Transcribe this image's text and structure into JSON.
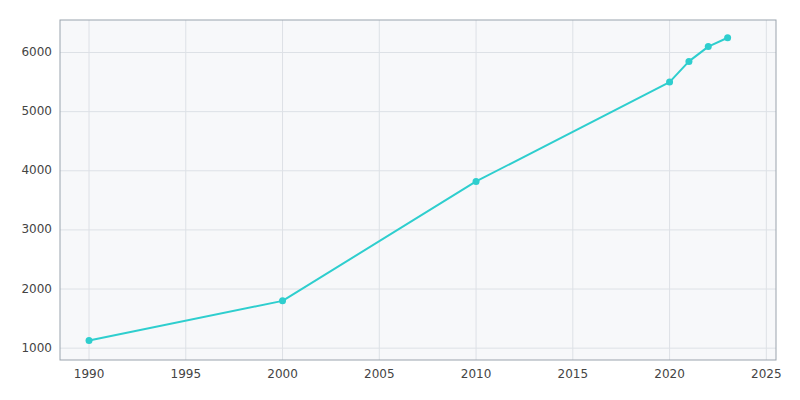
{
  "chart_data": {
    "type": "line",
    "x": [
      1990,
      2000,
      2010,
      2020,
      2021,
      2022,
      2023
    ],
    "values": [
      1130,
      1800,
      3820,
      5500,
      5850,
      6100,
      6250
    ],
    "color": "#2ECECE",
    "marker": "circle",
    "xlim": [
      1988.5,
      2025.5
    ],
    "ylim": [
      800,
      6550
    ],
    "xticks": [
      1990,
      1995,
      2000,
      2005,
      2010,
      2015,
      2020,
      2025
    ],
    "yticks": [
      1000,
      2000,
      3000,
      4000,
      5000,
      6000
    ],
    "grid": true
  }
}
